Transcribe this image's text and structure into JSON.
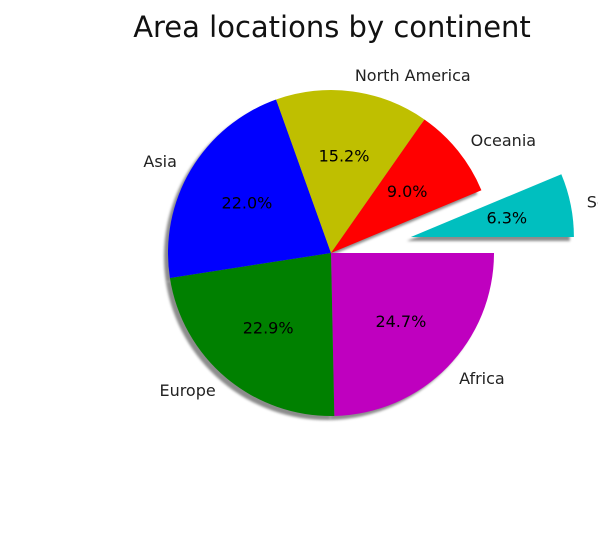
{
  "chart_data": {
    "type": "pie",
    "title": "Area locations by continent",
    "slices": [
      {
        "label": "Africa",
        "percent": 24.7,
        "percent_label": "24.7%",
        "color": "#bf00bf",
        "explode": 0.0
      },
      {
        "label": "Europe",
        "percent": 22.9,
        "percent_label": "22.9%",
        "color": "#008000",
        "explode": 0.0
      },
      {
        "label": "Asia",
        "percent": 22.0,
        "percent_label": "22.0%",
        "color": "#0000ff",
        "explode": 0.0
      },
      {
        "label": "North America",
        "percent": 15.2,
        "percent_label": "15.2%",
        "color": "#bfbf00",
        "explode": 0.0
      },
      {
        "label": "Oceania",
        "percent": 9.0,
        "percent_label": "9.0%",
        "color": "#ff0000",
        "explode": 0.0
      },
      {
        "label": "South America",
        "percent": 6.3,
        "percent_label": "6.3%",
        "color": "#00bfbf",
        "explode": 0.5
      }
    ],
    "start_angle": 0,
    "counterclock": false,
    "shadow": true
  }
}
